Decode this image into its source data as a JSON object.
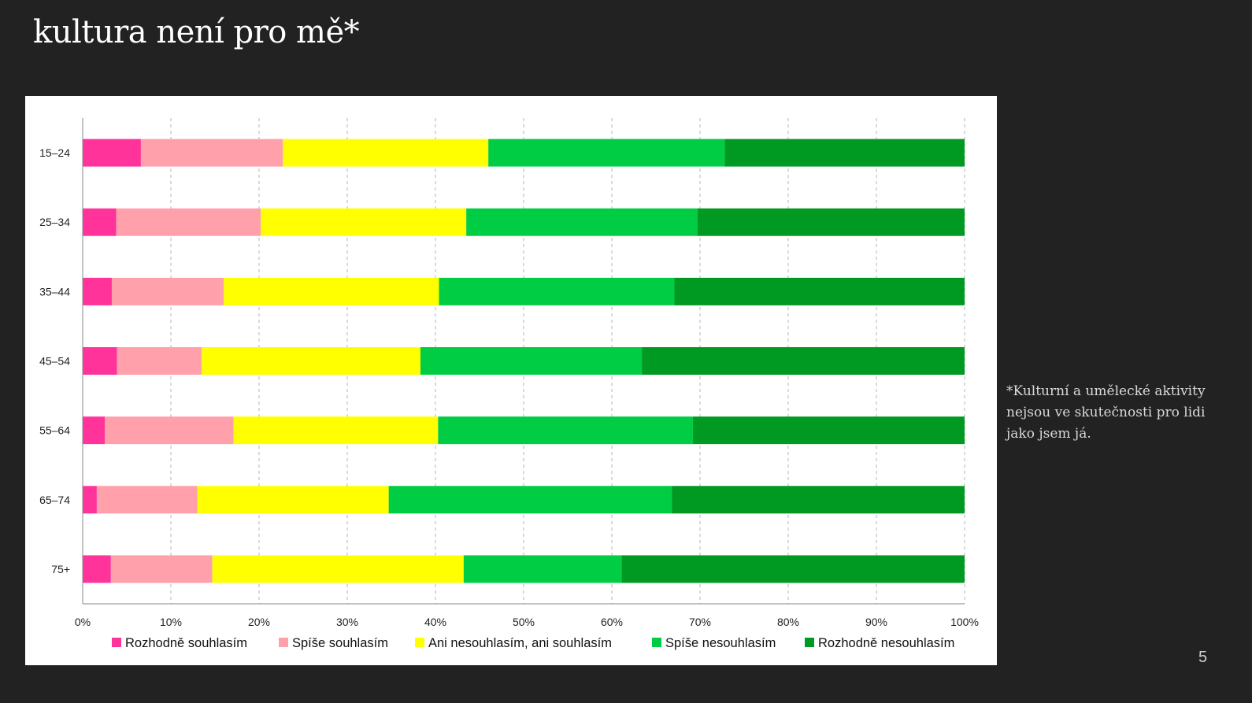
{
  "title": "kultura není pro mě*",
  "footnote": "*Kulturní a umělecké aktivity nejsou ve skutečnosti pro lidi jako jsem já.",
  "page_number": "5",
  "chart_data": {
    "type": "bar",
    "orientation": "horizontal",
    "stacked": true,
    "percent": true,
    "categories": [
      "15–24",
      "25–34",
      "35–44",
      "45–54",
      "55–64",
      "65–74",
      "75+"
    ],
    "series": [
      {
        "name": "Rozhodně souhlasím",
        "color": "#ff3399",
        "values": [
          6.6,
          3.8,
          3.3,
          3.9,
          2.5,
          1.6,
          3.2
        ]
      },
      {
        "name": "Spíše souhlasím",
        "color": "#ffa0aa",
        "values": [
          16.1,
          16.4,
          12.7,
          9.6,
          14.6,
          11.4,
          11.5
        ]
      },
      {
        "name": "Ani nesouhlasím, ani souhlasím",
        "color": "#ffff00",
        "values": [
          23.3,
          23.3,
          24.4,
          24.8,
          23.2,
          21.7,
          28.5
        ]
      },
      {
        "name": "Spíše nesouhlasím",
        "color": "#00cc44",
        "values": [
          26.8,
          26.2,
          26.7,
          25.1,
          28.9,
          32.1,
          17.9
        ]
      },
      {
        "name": "Rozhodně nesouhlasím",
        "color": "#009922",
        "values": [
          27.2,
          30.3,
          32.9,
          36.6,
          30.8,
          33.2,
          38.9
        ]
      }
    ],
    "x_ticks": [
      "0%",
      "10%",
      "20%",
      "30%",
      "40%",
      "50%",
      "60%",
      "70%",
      "80%",
      "90%",
      "100%"
    ],
    "xlim": [
      0,
      100
    ],
    "grid": "vertical dashed",
    "legend_position": "bottom"
  }
}
